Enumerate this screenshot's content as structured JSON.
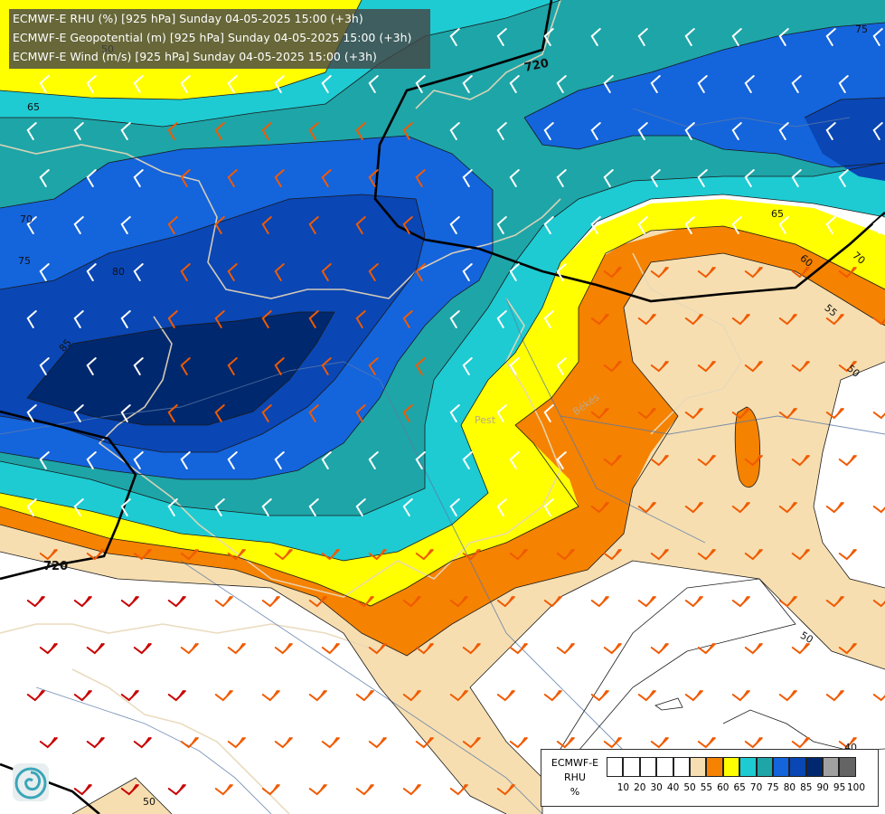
{
  "titles": [
    "ECMWF-E RHU (%) [925 hPa] Sunday 04-05-2025 15:00 (+3h)",
    "ECMWF-E Geopotential (m) [925 hPa] Sunday 04-05-2025 15:00 (+3h)",
    "ECMWF-E Wind (m/s) [925 hPa] Sunday 04-05-2025 15:00 (+3h)"
  ],
  "legend": {
    "line1": "ECMWF-E",
    "line2": "RHU",
    "line3": "%",
    "colors": [
      "#ffffff",
      "#ffffff",
      "#ffffff",
      "#ffffff",
      "#ffffff",
      "#f7deb0",
      "#f58200",
      "#ffff00",
      "#1ecbd2",
      "#1ea5a8",
      "#1464dc",
      "#0a46b4",
      "#00286e",
      "#a0a0a0",
      "#646464"
    ],
    "ticks": [
      "10",
      "20",
      "30",
      "40",
      "50",
      "55",
      "60",
      "65",
      "70",
      "75",
      "80",
      "85",
      "90",
      "95",
      "100"
    ]
  },
  "contour_labels": [
    "65",
    "70",
    "75",
    "80",
    "85",
    "65",
    "60",
    "55",
    "50",
    "70",
    "40",
    "50",
    "50",
    "75",
    "50"
  ],
  "geopotential_labels": [
    "720",
    "720"
  ],
  "places": [
    "Pest",
    "Békés"
  ],
  "colors": {
    "rh_40_50": "#ffffff",
    "rh_50_55": "#f7deb0",
    "rh_55_60": "#f58200",
    "rh_60_65": "#ffff00",
    "rh_65_70": "#1ecbd2",
    "rh_70_75": "#1ea5a8",
    "rh_75_80": "#1464dc",
    "rh_80_85": "#0a46b4",
    "rh_85_90": "#00286e",
    "wind_orange": "#f05a00",
    "wind_pink": "#f5a0c8",
    "wind_white": "#ffffff",
    "wind_red": "#c80000"
  },
  "logo": "ecmwf-swirl-icon"
}
